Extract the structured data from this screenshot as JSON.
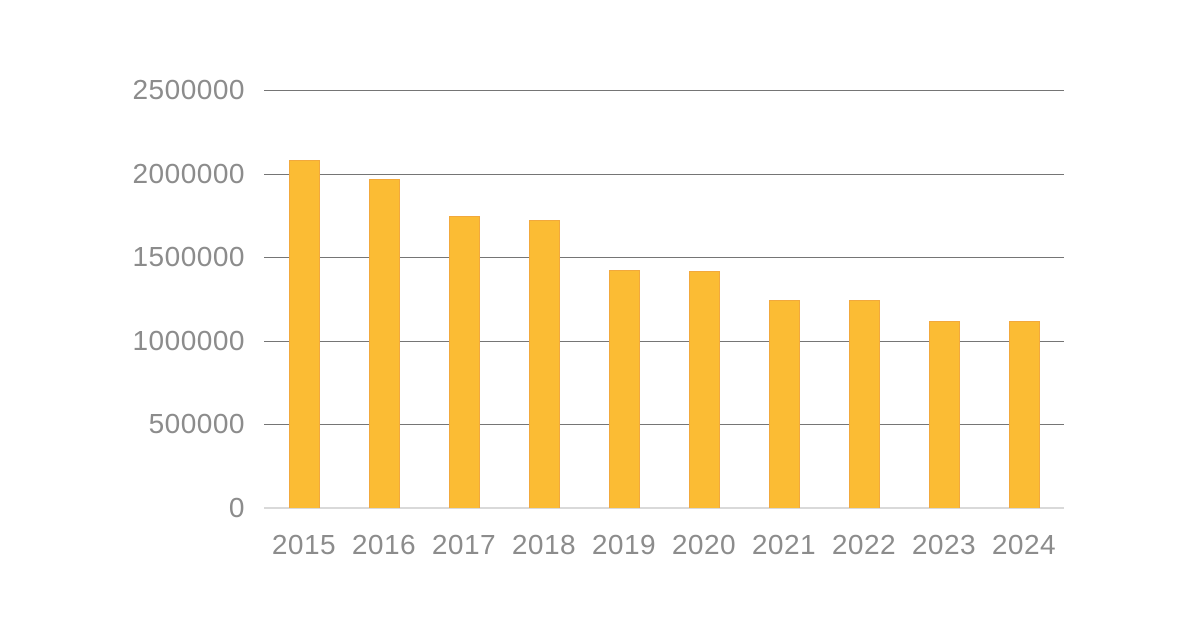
{
  "chart_data": {
    "type": "bar",
    "title": "",
    "categories": [
      "2015",
      "2016",
      "2017",
      "2018",
      "2019",
      "2020",
      "2021",
      "2022",
      "2023",
      "2024"
    ],
    "values": [
      2080000,
      1970000,
      1745000,
      1725000,
      1425000,
      1420000,
      1245000,
      1245000,
      1120000,
      1120000
    ],
    "xlabel": "",
    "ylabel": "",
    "ylim": [
      0,
      2500000
    ],
    "yticks": [
      0,
      500000,
      1000000,
      1500000,
      2000000,
      2500000
    ],
    "ytick_labels": [
      "0",
      "500000",
      "1000000",
      "1500000",
      "2000000",
      "2500000"
    ],
    "grid": true,
    "legend": false,
    "legend_position": "none",
    "colors": {
      "bar": "#FBBC34",
      "bar_edge": "#F2A93C",
      "gridline": "#757575",
      "baseline": "#D9D9D9",
      "label_text": "#8C8C8C",
      "background": "#FFFFFF"
    }
  }
}
